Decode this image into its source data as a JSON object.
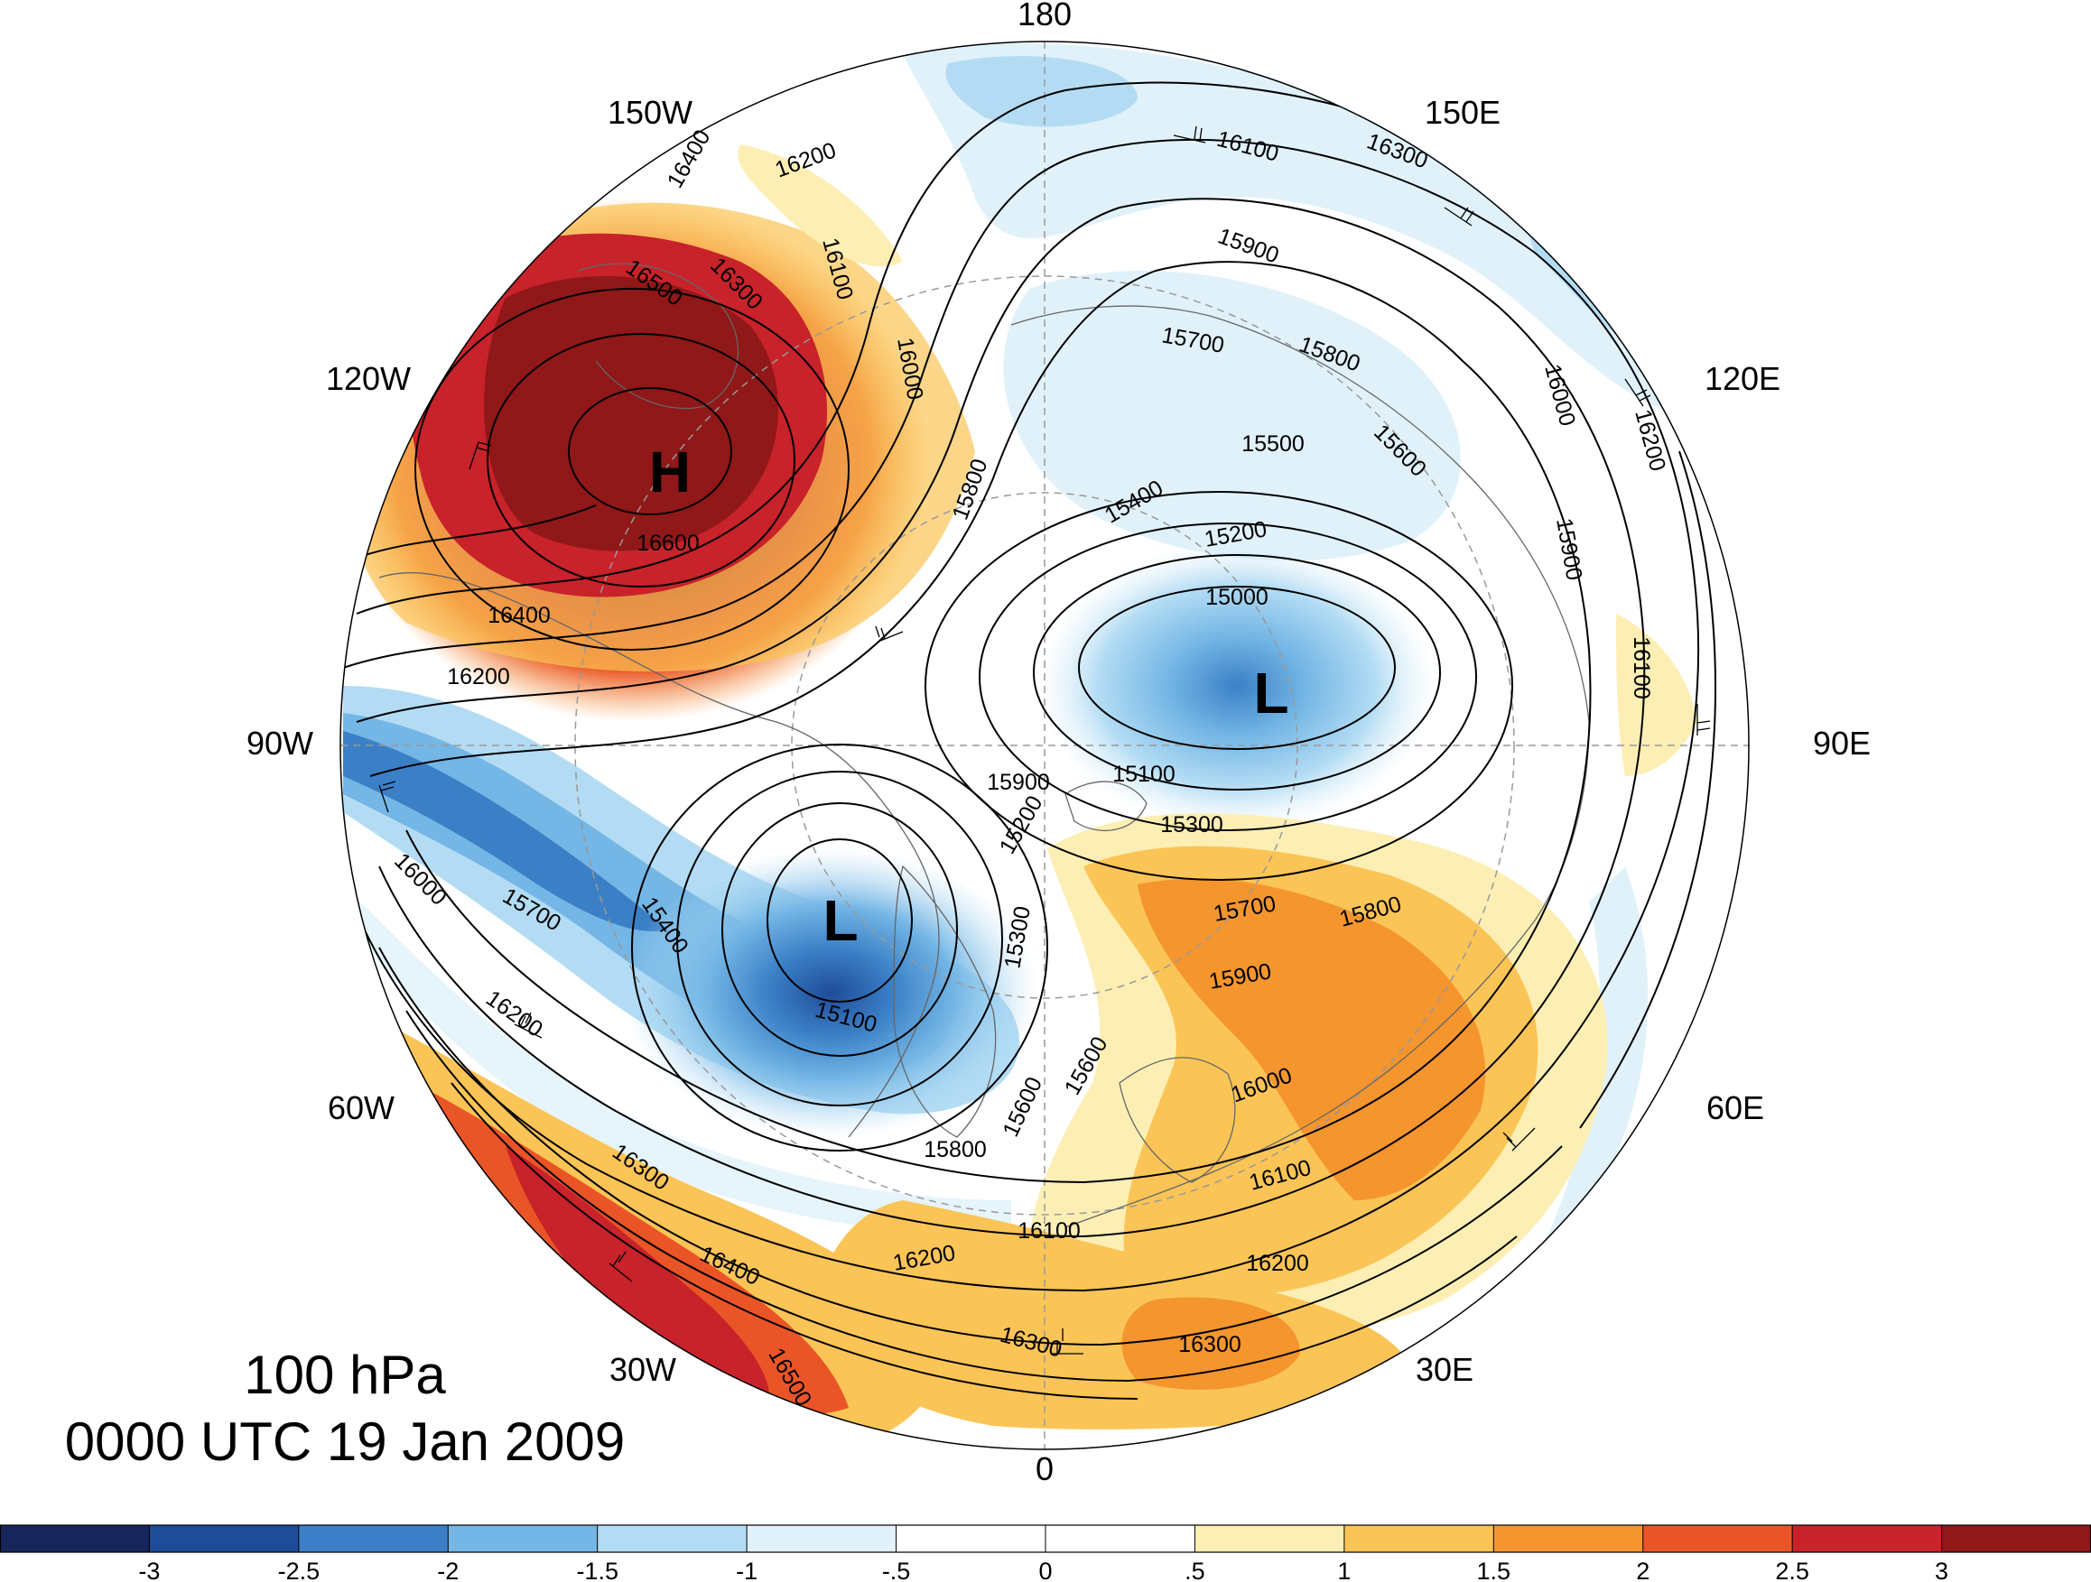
{
  "map": {
    "projection": "polar stereographic (North Pole)",
    "title_level": "100 hPa",
    "title_time": "0000 UTC 19 Jan 2009",
    "longitude_labels": [
      "180",
      "150E",
      "120E",
      "90E",
      "60E",
      "30E",
      "0",
      "30W",
      "60W",
      "90W",
      "120W",
      "150W"
    ],
    "pressure_centers": [
      {
        "symbol": "H",
        "meaning": "high"
      },
      {
        "symbol": "L",
        "meaning": "low"
      },
      {
        "symbol": "L",
        "meaning": "low"
      }
    ],
    "contour_labels": [
      "16400",
      "16500",
      "16300",
      "16600",
      "16400",
      "16200",
      "16200",
      "16100",
      "16000",
      "15800",
      "16300",
      "16100",
      "15900",
      "15700",
      "15800",
      "16000",
      "16200",
      "15500",
      "15600",
      "15900",
      "15400",
      "15200",
      "15000",
      "16100",
      "15900",
      "15600",
      "16000",
      "15700",
      "15400",
      "15100",
      "15200",
      "15300",
      "15300",
      "15700",
      "15800",
      "15900",
      "16000",
      "16200",
      "16300",
      "16400",
      "16500",
      "15600",
      "15800",
      "16100",
      "16200",
      "16300",
      "16100",
      "16200",
      "16300",
      "15100"
    ],
    "colors": {
      "shading_scale": [
        "#16265c",
        "#1f4c99",
        "#3b80c7",
        "#74b6e5",
        "#b3dcf4",
        "#e0f1fa",
        "#ffffff",
        "#ffffff",
        "#fdefb4",
        "#fbc456",
        "#f5952e",
        "#ea5527",
        "#c8222a",
        "#901818"
      ],
      "contour_line": "#000000",
      "coastline": "#666666",
      "graticule": "#999999"
    }
  },
  "colorbar": {
    "tick_labels": [
      "-3",
      "-2.5",
      "-2",
      "-1.5",
      "-1",
      "-.5",
      "0",
      ".5",
      "1",
      "1.5",
      "2",
      "2.5",
      "3"
    ]
  }
}
